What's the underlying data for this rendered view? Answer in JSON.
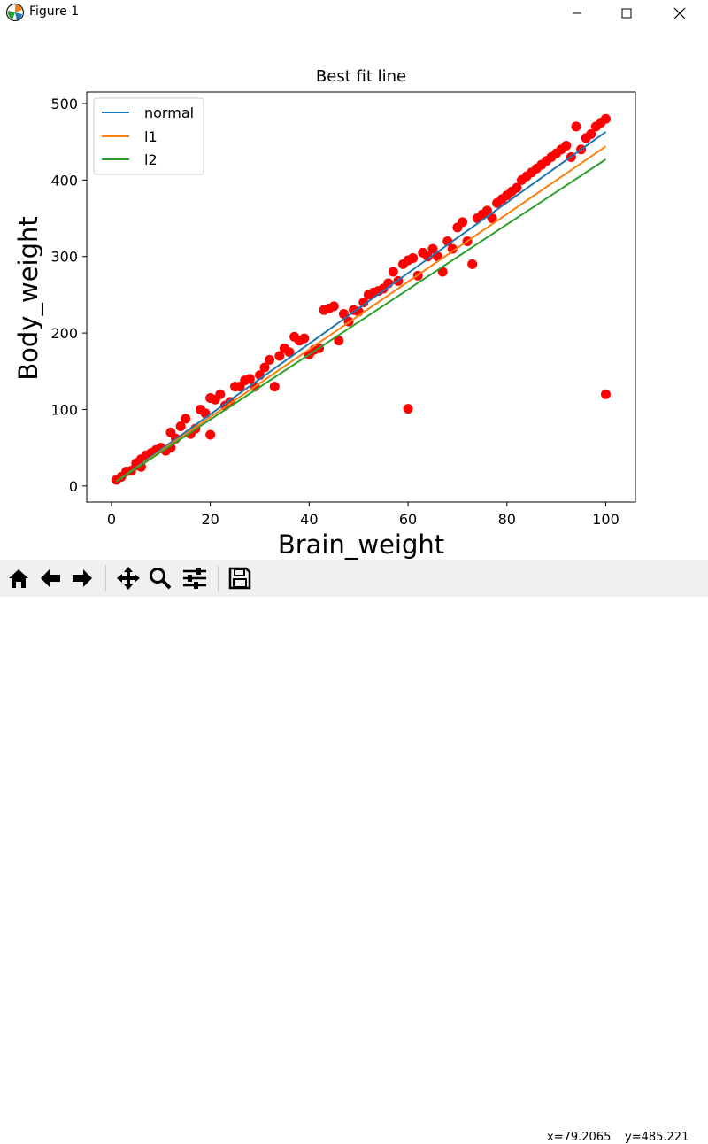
{
  "window": {
    "title": "Figure 1",
    "icon": "matplotlib-icon",
    "controls": [
      "minimize-icon",
      "maximize-icon",
      "close-icon"
    ]
  },
  "toolbar": {
    "buttons": [
      "home-icon",
      "back-arrow-icon",
      "forward-arrow-icon",
      "pan-icon",
      "zoom-icon",
      "configure-subplots-icon",
      "save-icon"
    ],
    "coord_x": "x=79.2065",
    "coord_y": "y=485.221"
  },
  "chart_data": {
    "type": "scatter",
    "title": "Best fit line",
    "xlabel": "Brain_weight",
    "ylabel": "Body_weight",
    "xlim": [
      -5,
      106
    ],
    "ylim": [
      -21,
      515
    ],
    "xticks": [
      0,
      20,
      40,
      60,
      80,
      100
    ],
    "yticks": [
      0,
      100,
      200,
      300,
      400,
      500
    ],
    "grid": false,
    "legend_position": "top-left",
    "lines": [
      {
        "name": "normal",
        "color": "#1f77b4",
        "x": [
          1,
          100
        ],
        "y": [
          6,
          463
        ]
      },
      {
        "name": "l1",
        "color": "#ff7f0e",
        "x": [
          1,
          100
        ],
        "y": [
          6,
          444
        ]
      },
      {
        "name": "l2",
        "color": "#2ca02c",
        "x": [
          1,
          100
        ],
        "y": [
          6,
          427
        ]
      }
    ],
    "points": {
      "color": "#ff0000",
      "x": [
        1,
        2,
        3,
        4,
        5,
        5,
        6,
        6,
        7,
        8,
        9,
        10,
        11,
        12,
        12,
        13,
        14,
        15,
        16,
        17,
        18,
        19,
        20,
        20,
        21,
        22,
        23,
        24,
        25,
        26,
        27,
        28,
        29,
        30,
        31,
        32,
        33,
        34,
        35,
        36,
        37,
        38,
        39,
        40,
        41,
        42,
        43,
        44,
        45,
        46,
        47,
        48,
        49,
        50,
        51,
        52,
        53,
        54,
        55,
        56,
        57,
        58,
        59,
        60,
        61,
        62,
        63,
        64,
        65,
        66,
        67,
        68,
        69,
        70,
        71,
        72,
        73,
        74,
        75,
        76,
        77,
        78,
        79,
        80,
        81,
        82,
        83,
        84,
        85,
        86,
        87,
        88,
        89,
        90,
        91,
        92,
        93,
        94,
        95,
        96,
        97,
        98,
        99,
        100,
        60,
        100
      ],
      "y": [
        8,
        12,
        19,
        20,
        27,
        30,
        35,
        25,
        40,
        43,
        47,
        50,
        46,
        70,
        50,
        62,
        78,
        88,
        68,
        75,
        100,
        95,
        67,
        115,
        113,
        120,
        105,
        110,
        130,
        130,
        138,
        140,
        130,
        145,
        155,
        165,
        130,
        170,
        180,
        175,
        195,
        190,
        193,
        172,
        178,
        180,
        230,
        232,
        235,
        190,
        225,
        215,
        230,
        228,
        240,
        250,
        253,
        255,
        258,
        265,
        280,
        268,
        290,
        295,
        298,
        275,
        305,
        300,
        310,
        300,
        280,
        320,
        310,
        338,
        345,
        320,
        290,
        350,
        355,
        360,
        350,
        370,
        375,
        380,
        385,
        390,
        400,
        405,
        410,
        415,
        420,
        425,
        430,
        435,
        440,
        445,
        430,
        470,
        440,
        455,
        460,
        470,
        475,
        480,
        101,
        120
      ]
    }
  }
}
